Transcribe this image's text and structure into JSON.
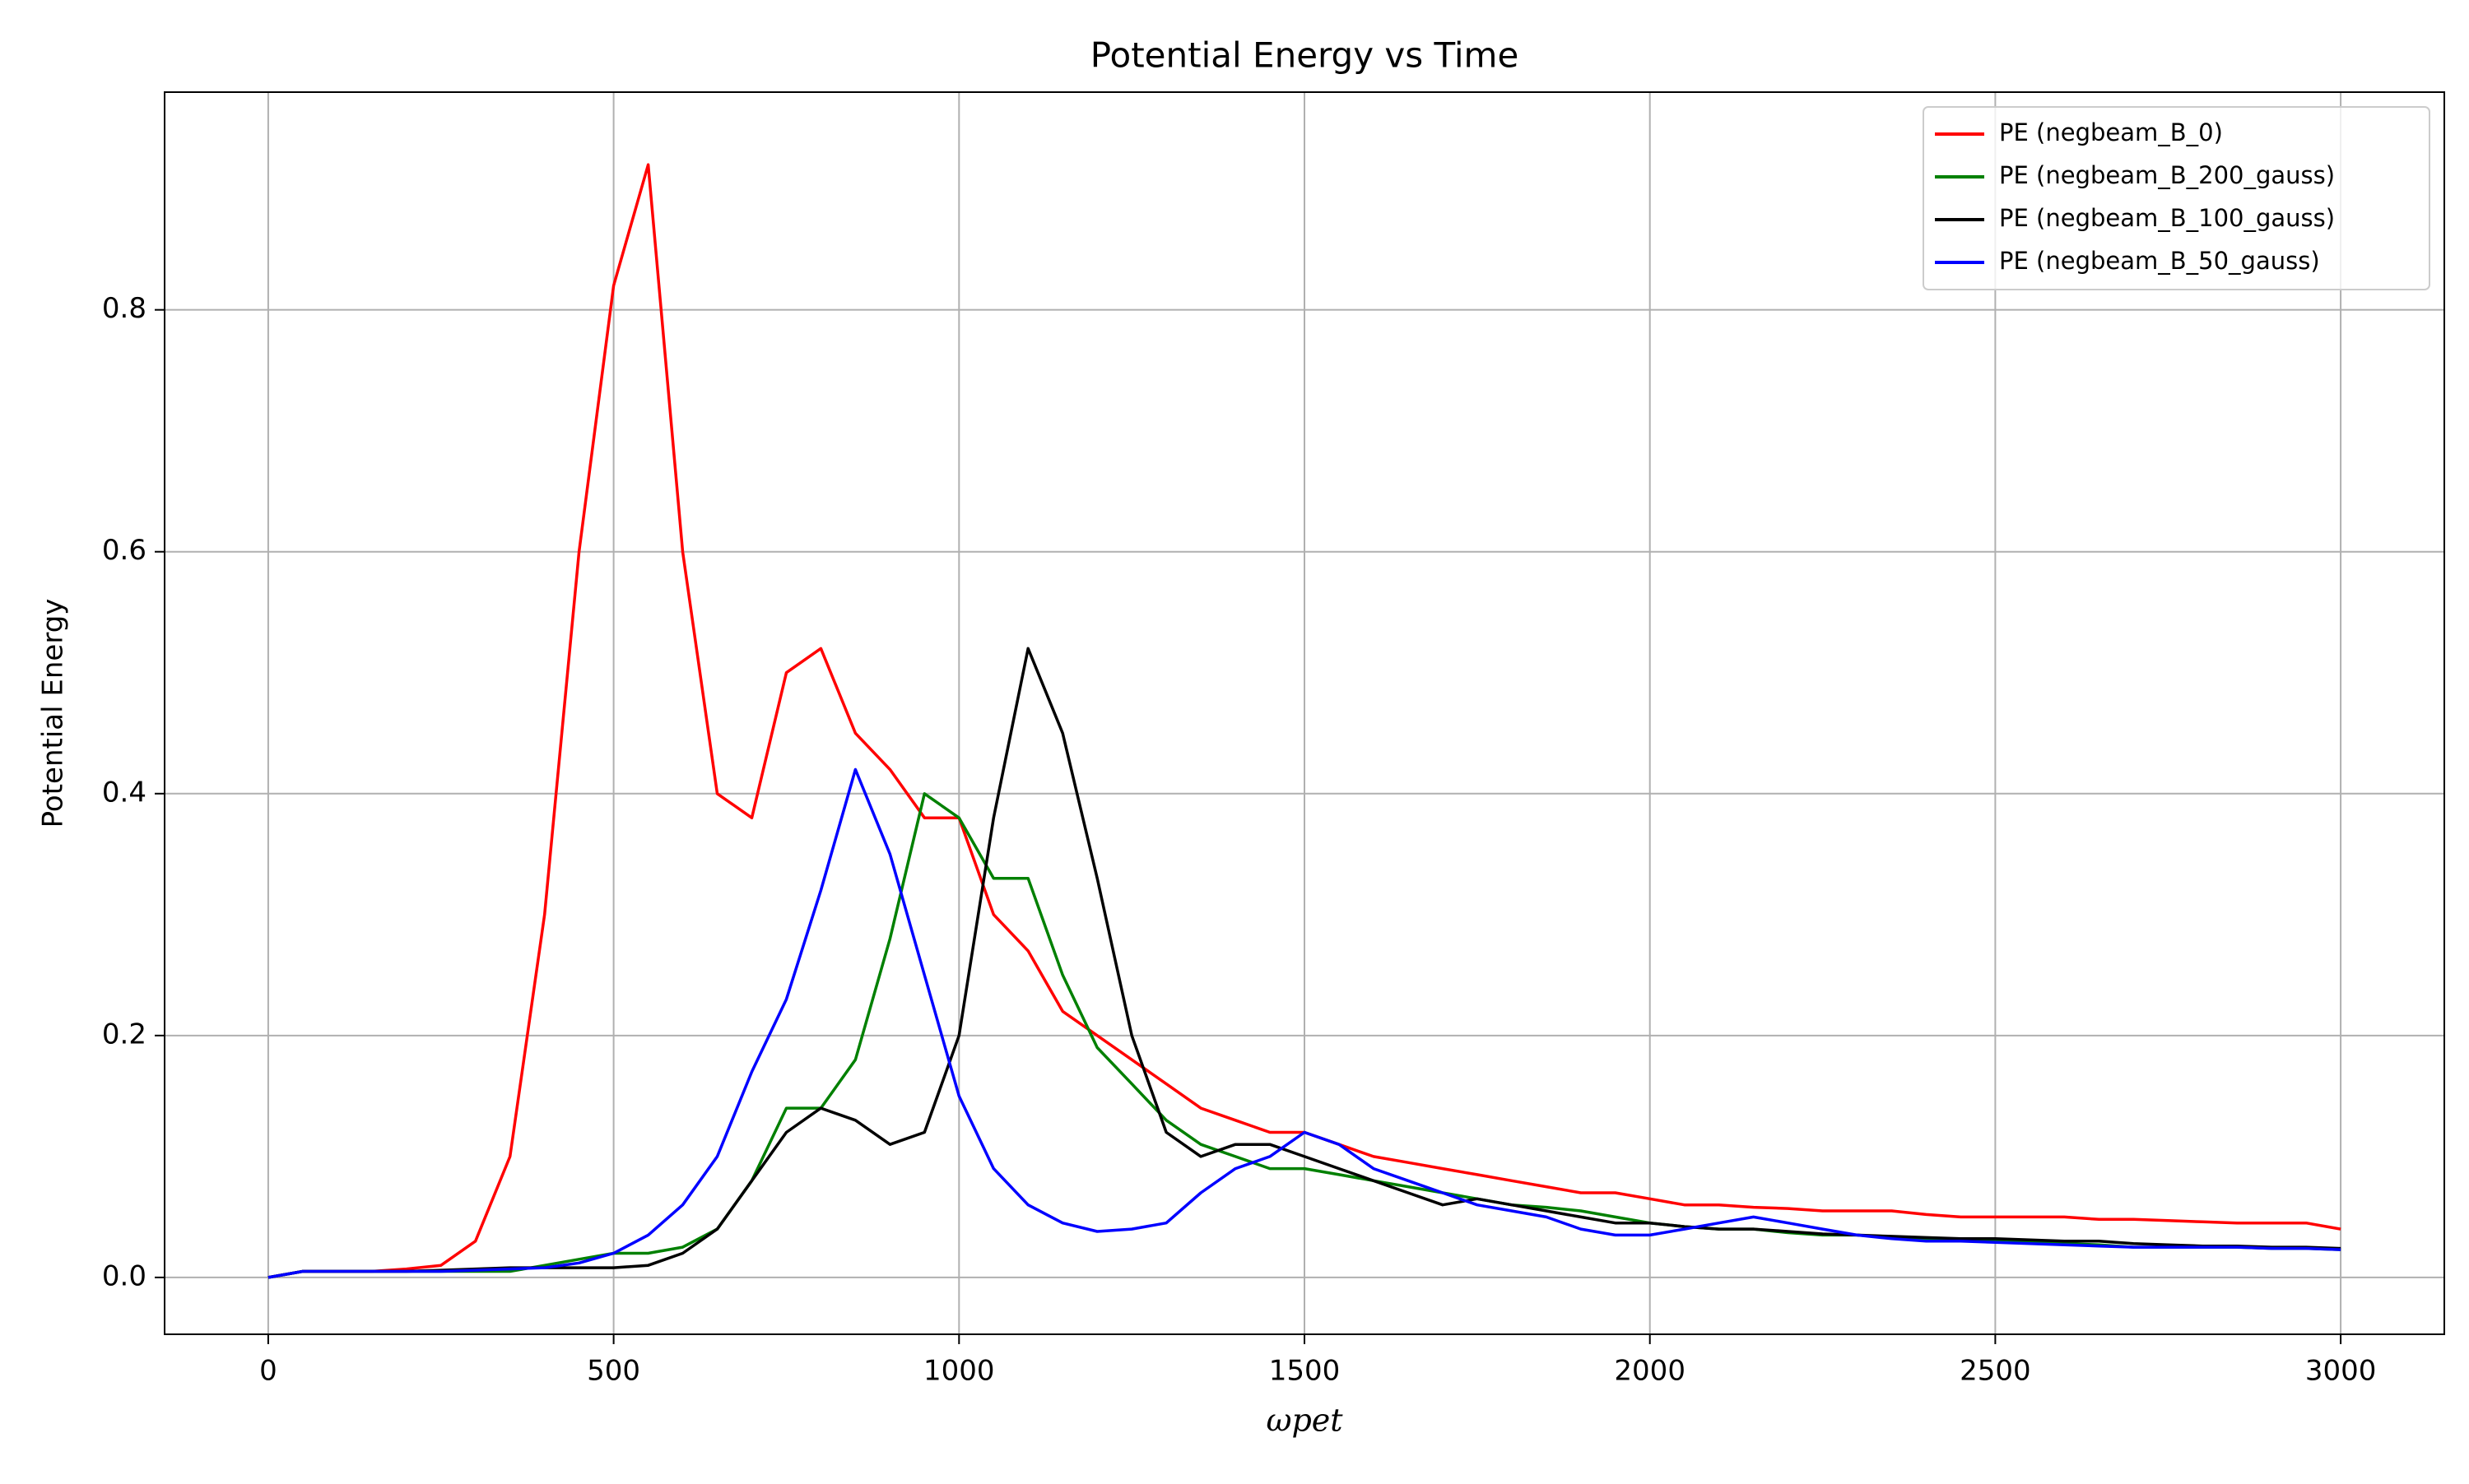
{
  "chart_data": {
    "type": "line",
    "title": "Potential Energy vs Time",
    "xlabel": "ωpet",
    "ylabel": "Potential Energy",
    "x": [
      0,
      50,
      100,
      150,
      200,
      250,
      300,
      350,
      400,
      450,
      500,
      550,
      600,
      650,
      700,
      750,
      800,
      850,
      900,
      950,
      1000,
      1050,
      1100,
      1150,
      1200,
      1250,
      1300,
      1350,
      1400,
      1450,
      1500,
      1550,
      1600,
      1650,
      1700,
      1750,
      1800,
      1850,
      1900,
      1950,
      2000,
      2050,
      2100,
      2150,
      2200,
      2250,
      2300,
      2350,
      2400,
      2450,
      2500,
      2550,
      2600,
      2650,
      2700,
      2750,
      2800,
      2850,
      2900,
      2950,
      3000
    ],
    "series": [
      {
        "name": "PE (negbeam_B_0)",
        "color": "#ff0000",
        "values": [
          0,
          0.005,
          0.005,
          0.005,
          0.007,
          0.01,
          0.03,
          0.1,
          0.3,
          0.6,
          0.82,
          0.92,
          0.6,
          0.4,
          0.38,
          0.5,
          0.52,
          0.45,
          0.42,
          0.38,
          0.38,
          0.3,
          0.27,
          0.22,
          0.2,
          0.18,
          0.16,
          0.14,
          0.13,
          0.12,
          0.12,
          0.11,
          0.1,
          0.095,
          0.09,
          0.085,
          0.08,
          0.075,
          0.07,
          0.07,
          0.065,
          0.06,
          0.06,
          0.058,
          0.057,
          0.055,
          0.055,
          0.055,
          0.052,
          0.05,
          0.05,
          0.05,
          0.05,
          0.048,
          0.048,
          0.047,
          0.046,
          0.045,
          0.045,
          0.045,
          0.04
        ]
      },
      {
        "name": "PE (negbeam_B_200_gauss)",
        "color": "#008000",
        "values": [
          0,
          0.005,
          0.005,
          0.005,
          0.005,
          0.005,
          0.005,
          0.005,
          0.01,
          0.015,
          0.02,
          0.02,
          0.025,
          0.04,
          0.08,
          0.14,
          0.14,
          0.18,
          0.28,
          0.4,
          0.38,
          0.33,
          0.33,
          0.25,
          0.19,
          0.16,
          0.13,
          0.11,
          0.1,
          0.09,
          0.09,
          0.085,
          0.08,
          0.075,
          0.07,
          0.065,
          0.06,
          0.058,
          0.055,
          0.05,
          0.045,
          0.042,
          0.04,
          0.04,
          0.037,
          0.035,
          0.035,
          0.033,
          0.032,
          0.03,
          0.03,
          0.03,
          0.028,
          0.027,
          0.025,
          0.025,
          0.025,
          0.025,
          0.024,
          0.024,
          0.023
        ]
      },
      {
        "name": "PE (negbeam_B_100_gauss)",
        "color": "#000000",
        "values": [
          0,
          0.005,
          0.005,
          0.005,
          0.005,
          0.006,
          0.007,
          0.008,
          0.008,
          0.008,
          0.008,
          0.01,
          0.02,
          0.04,
          0.08,
          0.12,
          0.14,
          0.13,
          0.11,
          0.12,
          0.2,
          0.38,
          0.52,
          0.45,
          0.33,
          0.2,
          0.12,
          0.1,
          0.11,
          0.11,
          0.1,
          0.09,
          0.08,
          0.07,
          0.06,
          0.065,
          0.06,
          0.055,
          0.05,
          0.045,
          0.045,
          0.042,
          0.04,
          0.04,
          0.038,
          0.036,
          0.035,
          0.034,
          0.033,
          0.032,
          0.032,
          0.031,
          0.03,
          0.03,
          0.028,
          0.027,
          0.026,
          0.026,
          0.025,
          0.025,
          0.024
        ]
      },
      {
        "name": "PE (negbeam_B_50_gauss)",
        "color": "#0000ff",
        "values": [
          0,
          0.005,
          0.005,
          0.005,
          0.005,
          0.005,
          0.006,
          0.007,
          0.008,
          0.012,
          0.02,
          0.035,
          0.06,
          0.1,
          0.17,
          0.23,
          0.32,
          0.42,
          0.35,
          0.25,
          0.15,
          0.09,
          0.06,
          0.045,
          0.038,
          0.04,
          0.045,
          0.07,
          0.09,
          0.1,
          0.12,
          0.11,
          0.09,
          0.08,
          0.07,
          0.06,
          0.055,
          0.05,
          0.04,
          0.035,
          0.035,
          0.04,
          0.045,
          0.05,
          0.045,
          0.04,
          0.035,
          0.032,
          0.03,
          0.03,
          0.029,
          0.028,
          0.027,
          0.026,
          0.025,
          0.025,
          0.025,
          0.025,
          0.024,
          0.024,
          0.023
        ]
      }
    ],
    "xlim": [
      -150,
      3150
    ],
    "ylim": [
      -0.047,
      0.98
    ],
    "xticks": [
      0,
      500,
      1000,
      1500,
      2000,
      2500,
      3000
    ],
    "yticks": [
      {
        "value": 0,
        "label": "0.0"
      },
      0.2,
      0.4,
      0.6,
      0.8
    ],
    "grid": true,
    "legend": "upper right"
  }
}
